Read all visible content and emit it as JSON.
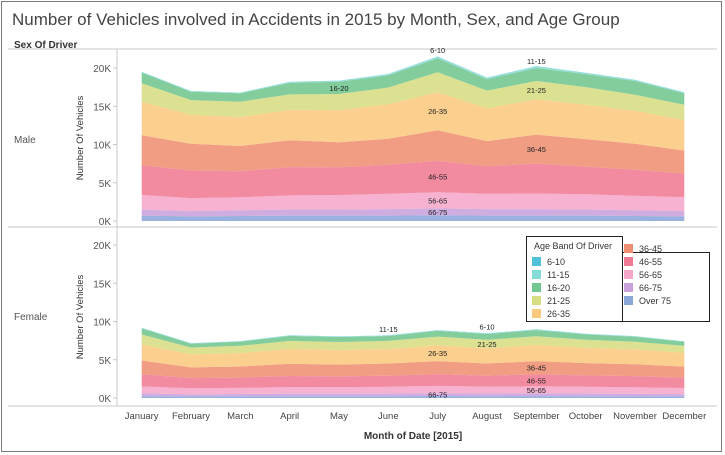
{
  "title": "Number of Vehicles involved in Accidents in 2015 by Month, Sex, and Age Group",
  "sex_header": "Sex Of Driver",
  "rows": [
    {
      "label": "Male",
      "ylabel": "Number Of Vehicles"
    },
    {
      "label": "Female",
      "ylabel": "Number Of Vehicles"
    }
  ],
  "legend": {
    "title": "Age Band Of Driver",
    "items": [
      {
        "label": "6-10",
        "color": "#4fc1d9"
      },
      {
        "label": "11-15",
        "color": "#86dcd6"
      },
      {
        "label": "16-20",
        "color": "#72c690"
      },
      {
        "label": "21-25",
        "color": "#d7dd82"
      },
      {
        "label": "26-35",
        "color": "#fbc97e"
      },
      {
        "label": "36-45",
        "color": "#ee8f73"
      },
      {
        "label": "46-55",
        "color": "#f07a93"
      },
      {
        "label": "56-65",
        "color": "#f5a7c9"
      },
      {
        "label": "66-75",
        "color": "#c9a2dd"
      },
      {
        "label": "Over 75",
        "color": "#8ba6d9"
      }
    ]
  },
  "chart_data": {
    "type": "area",
    "stacked": true,
    "xlabel": "Month of Date [2015]",
    "ylabel": "Number Of Vehicles",
    "ylim": [
      0,
      22000
    ],
    "yticks": [
      0,
      5000,
      10000,
      15000,
      20000
    ],
    "ytick_labels": [
      "0K",
      "5K",
      "10K",
      "15K",
      "20K"
    ],
    "grid": false,
    "legend_position": "right",
    "categories": [
      "January",
      "February",
      "March",
      "April",
      "May",
      "June",
      "July",
      "August",
      "September",
      "October",
      "November",
      "December"
    ],
    "panels": [
      {
        "name": "Male",
        "series": [
          {
            "name": "Over 75",
            "values": [
              700,
              600,
              650,
              700,
              700,
              700,
              750,
              700,
              700,
              700,
              650,
              600
            ]
          },
          {
            "name": "66-75",
            "values": [
              800,
              700,
              750,
              800,
              800,
              850,
              900,
              850,
              850,
              800,
              750,
              700
            ]
          },
          {
            "name": "56-65",
            "values": [
              1900,
              1700,
              1700,
              1850,
              1900,
              2000,
              2100,
              2000,
              2050,
              2000,
              1900,
              1800
            ]
          },
          {
            "name": "46-55",
            "values": [
              3900,
              3600,
              3400,
              3700,
              3600,
              3800,
              4100,
              3600,
              3900,
              3600,
              3400,
              3100
            ]
          },
          {
            "name": "36-45",
            "values": [
              3900,
              3500,
              3300,
              3500,
              3300,
              3400,
              4000,
              3300,
              3800,
              3600,
              3400,
              3000
            ]
          },
          {
            "name": "26-35",
            "values": [
              4400,
              3800,
              3800,
              4000,
              4200,
              4500,
              5000,
              4300,
              4600,
              4500,
              4300,
              4000
            ]
          },
          {
            "name": "21-25",
            "values": [
              2400,
              1900,
              2000,
              2000,
              2100,
              2200,
              2600,
              2300,
              2400,
              2300,
              2100,
              2000
            ]
          },
          {
            "name": "16-20",
            "values": [
              1400,
              1100,
              1100,
              1500,
              1600,
              1600,
              1800,
              1500,
              1700,
              1700,
              1800,
              1500
            ]
          },
          {
            "name": "11-15",
            "values": [
              80,
              80,
              70,
              120,
              120,
              130,
              200,
              150,
              200,
              150,
              130,
              100
            ]
          },
          {
            "name": "6-10",
            "values": [
              20,
              20,
              20,
              30,
              30,
              30,
              50,
              40,
              50,
              40,
              30,
              20
            ]
          }
        ]
      },
      {
        "name": "Female",
        "series": [
          {
            "name": "Over 75",
            "values": [
              250,
              200,
              220,
              240,
              240,
              240,
              260,
              240,
              250,
              240,
              230,
              210
            ]
          },
          {
            "name": "66-75",
            "values": [
              350,
              300,
              300,
              330,
              330,
              340,
              370,
              340,
              360,
              340,
              330,
              300
            ]
          },
          {
            "name": "56-65",
            "values": [
              900,
              800,
              800,
              850,
              850,
              880,
              950,
              880,
              920,
              880,
              850,
              800
            ]
          },
          {
            "name": "46-55",
            "values": [
              1600,
              1300,
              1350,
              1450,
              1400,
              1450,
              1550,
              1450,
              1550,
              1500,
              1450,
              1350
            ]
          },
          {
            "name": "36-45",
            "values": [
              1800,
              1400,
              1450,
              1600,
              1550,
              1600,
              1700,
              1600,
              1750,
              1600,
              1550,
              1450
            ]
          },
          {
            "name": "26-35",
            "values": [
              2100,
              1700,
              1750,
              1950,
              1900,
              1900,
              2050,
              2000,
              2100,
              2000,
              1950,
              1800
            ]
          },
          {
            "name": "21-25",
            "values": [
              1300,
              900,
              950,
              1050,
              1050,
              1050,
              1150,
              1100,
              1150,
              1050,
              1000,
              900
            ]
          },
          {
            "name": "16-20",
            "values": [
              800,
              500,
              550,
              650,
              650,
              650,
              750,
              750,
              800,
              700,
              650,
              550
            ]
          },
          {
            "name": "11-15",
            "values": [
              60,
              50,
              50,
              60,
              60,
              60,
              70,
              70,
              70,
              60,
              60,
              50
            ]
          },
          {
            "name": "6-10",
            "values": [
              20,
              20,
              20,
              20,
              20,
              20,
              30,
              30,
              30,
              20,
              20,
              20
            ]
          }
        ]
      }
    ],
    "annotations": [
      {
        "panel": "Male",
        "text": "6-10",
        "month": "July"
      },
      {
        "panel": "Male",
        "text": "11-15",
        "month": "September"
      },
      {
        "panel": "Male",
        "text": "16-20",
        "month": "May"
      },
      {
        "panel": "Male",
        "text": "21-25",
        "month": "September"
      },
      {
        "panel": "Male",
        "text": "26-35",
        "month": "July"
      },
      {
        "panel": "Male",
        "text": "36-45",
        "month": "September"
      },
      {
        "panel": "Male",
        "text": "46-55",
        "month": "July"
      },
      {
        "panel": "Male",
        "text": "56-65",
        "month": "July"
      },
      {
        "panel": "Male",
        "text": "66-75",
        "month": "July"
      },
      {
        "panel": "Female",
        "text": "6-10",
        "month": "August"
      },
      {
        "panel": "Female",
        "text": "11-15",
        "month": "June"
      },
      {
        "panel": "Female",
        "text": "21-25",
        "month": "August"
      },
      {
        "panel": "Female",
        "text": "26-35",
        "month": "July"
      },
      {
        "panel": "Female",
        "text": "36-45",
        "month": "September"
      },
      {
        "panel": "Female",
        "text": "46-55",
        "month": "September"
      },
      {
        "panel": "Female",
        "text": "56-65",
        "month": "September"
      },
      {
        "panel": "Female",
        "text": "66-75",
        "month": "July"
      }
    ]
  }
}
